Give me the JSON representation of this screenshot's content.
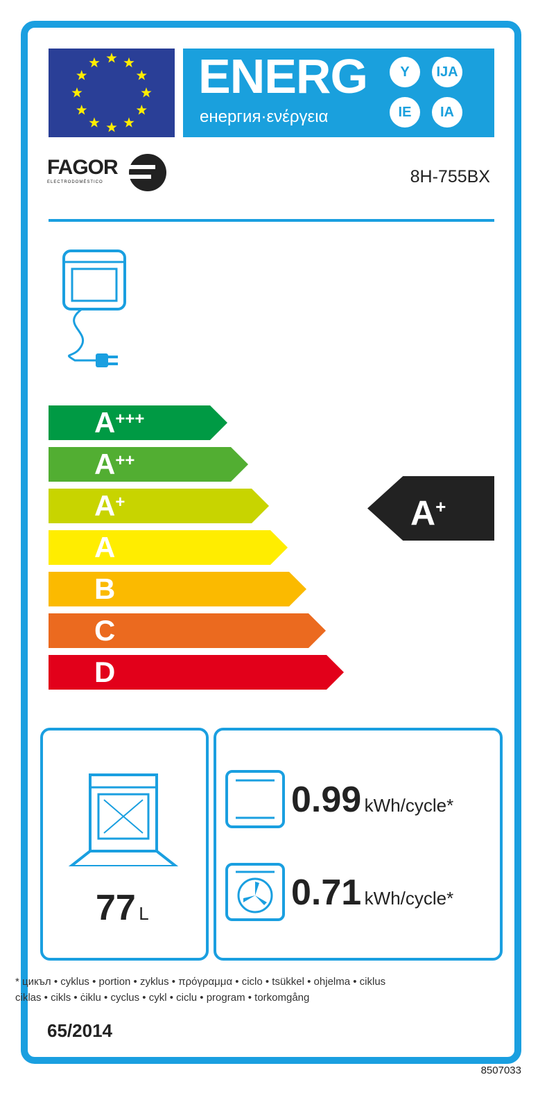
{
  "header": {
    "energ": "ENERG",
    "subtitle": "енергия·ενέργεια",
    "suffixes": [
      "Y",
      "IJA",
      "IE",
      "IA"
    ]
  },
  "brand": {
    "name": "FAGOR",
    "tagline": "ELECTRODOMÉSTICO"
  },
  "model": "8H-755BX",
  "classes": [
    {
      "letter": "A",
      "plus": "+++",
      "color": "#009a44"
    },
    {
      "letter": "A",
      "plus": "++",
      "color": "#52ae32"
    },
    {
      "letter": "A",
      "plus": "+",
      "color": "#c8d400"
    },
    {
      "letter": "A",
      "plus": "",
      "color": "#ffed00"
    },
    {
      "letter": "B",
      "plus": "",
      "color": "#fbba00"
    },
    {
      "letter": "C",
      "plus": "",
      "color": "#eb6a1f"
    },
    {
      "letter": "D",
      "plus": "",
      "color": "#e2001a"
    }
  ],
  "rating": {
    "letter": "A",
    "plus": "+"
  },
  "volume": {
    "value": "77",
    "unit": "L"
  },
  "conventional": {
    "value": "0.99",
    "unit": "kWh/cycle*"
  },
  "fan_forced": {
    "value": "0.71",
    "unit": "kWh/cycle*"
  },
  "footnote": [
    "* цикъл • cyklus • portion • zyklus • πρόγραμμα • ciclo • tsükkel • ohjelma • ciklus",
    "ciklas • cikls • ċiklu • cyclus • cykl • ciclu • program • torkomgång"
  ],
  "regulation": "65/2014",
  "code": "8507033",
  "colors": {
    "frame": "#1a9fe0",
    "flag": "#2a3f97",
    "stars": "#ffed00"
  }
}
